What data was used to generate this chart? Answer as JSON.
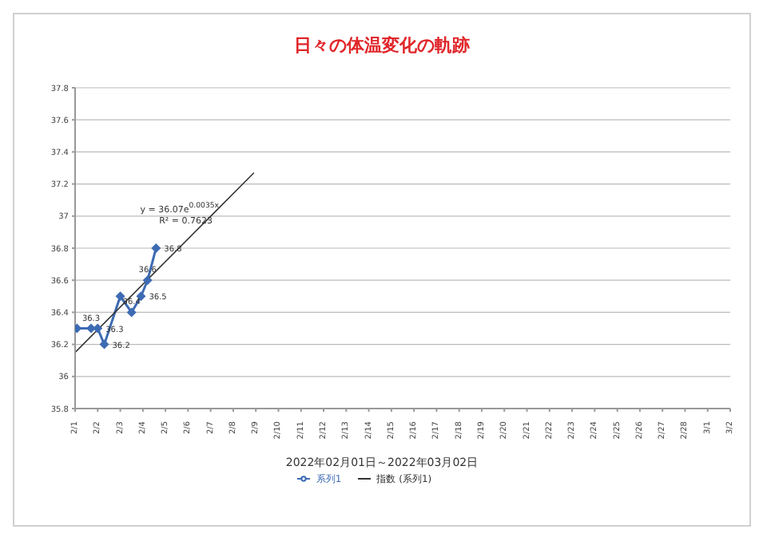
{
  "chart_data": {
    "type": "line",
    "title": "日々の体温変化の軌跡",
    "xlabel": "2022年02月01日～2022年03月02日",
    "annotations": [
      "y = 36.07e$^{0.0035x}$",
      "R² = 0.7623"
    ],
    "series": [
      {
        "name": "系列1",
        "color": "#3d6bb3",
        "marker": "diamond",
        "x": [
          "2022-02-01T02:00",
          "2022-02-01T17:00",
          "2022-02-02T00:00",
          "2022-02-02T07:00",
          "2022-02-03T00:00",
          "2022-02-03T12:00",
          "2022-02-03T22:00",
          "2022-02-04T05:00",
          "2022-02-04T14:00"
        ],
        "values": [
          36.3,
          36.3,
          36.3,
          36.2,
          36.5,
          36.4,
          36.5,
          36.6,
          36.8
        ],
        "value_labels": [
          null,
          "36.3",
          "36.3",
          "36.2",
          null,
          "36.4",
          "36.5",
          "36.6",
          "36.8"
        ]
      },
      {
        "name": "指数 (系列1)",
        "color": "#333333",
        "marker": "none",
        "x": [
          "2022-02-01T00:00",
          "2022-02-08T22:00"
        ],
        "values": [
          36.15,
          37.27
        ]
      }
    ],
    "xlim": [
      "2022-02-01",
      "2022-03-02"
    ],
    "xticks": [
      {
        "value": "2022-02-01",
        "label": "2/1"
      },
      {
        "value": "2022-02-02",
        "label": "2/2"
      },
      {
        "value": "2022-02-03",
        "label": "2/3"
      },
      {
        "value": "2022-02-04",
        "label": "2/4"
      },
      {
        "value": "2022-02-05",
        "label": "2/5"
      },
      {
        "value": "2022-02-06",
        "label": "2/6"
      },
      {
        "value": "2022-02-07",
        "label": "2/7"
      },
      {
        "value": "2022-02-08",
        "label": "2/8"
      },
      {
        "value": "2022-02-09",
        "label": "2/9"
      },
      {
        "value": "2022-02-10",
        "label": "2/10"
      },
      {
        "value": "2022-02-11",
        "label": "2/11"
      },
      {
        "value": "2022-02-12",
        "label": "2/12"
      },
      {
        "value": "2022-02-13",
        "label": "2/13"
      },
      {
        "value": "2022-02-14",
        "label": "2/14"
      },
      {
        "value": "2022-02-15",
        "label": "2/15"
      },
      {
        "value": "2022-02-16",
        "label": "2/16"
      },
      {
        "value": "2022-02-17",
        "label": "2/17"
      },
      {
        "value": "2022-02-18",
        "label": "2/18"
      },
      {
        "value": "2022-02-19",
        "label": "2/19"
      },
      {
        "value": "2022-02-20",
        "label": "2/20"
      },
      {
        "value": "2022-02-21",
        "label": "2/21"
      },
      {
        "value": "2022-02-22",
        "label": "2/22"
      },
      {
        "value": "2022-02-23",
        "label": "2/23"
      },
      {
        "value": "2022-02-24",
        "label": "2/24"
      },
      {
        "value": "2022-02-25",
        "label": "2/25"
      },
      {
        "value": "2022-02-26",
        "label": "2/26"
      },
      {
        "value": "2022-02-27",
        "label": "2/27"
      },
      {
        "value": "2022-02-28",
        "label": "2/28"
      },
      {
        "value": "2022-03-01",
        "label": "3/1"
      },
      {
        "value": "2022-03-02",
        "label": "3/2"
      }
    ],
    "ylim": [
      35.8,
      37.8
    ],
    "yticks": [
      35.8,
      36,
      36.2,
      36.4,
      36.6,
      36.8,
      37,
      37.2,
      37.4,
      37.6,
      37.8
    ],
    "grid": "y",
    "legend": "bottom",
    "line_style": "solid"
  }
}
